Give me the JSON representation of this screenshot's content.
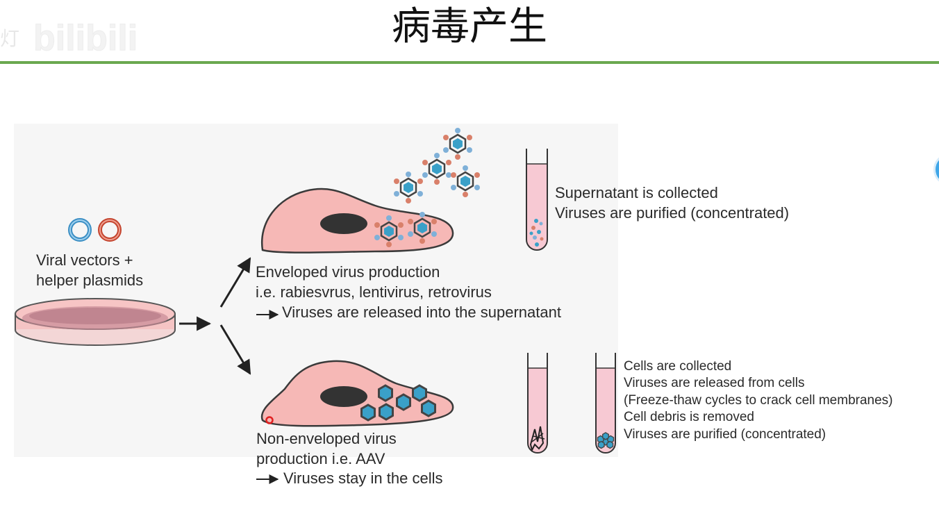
{
  "slide": {
    "title": "病毒产生",
    "accent_color": "#6aa84f"
  },
  "watermark": {
    "text": "bilibili",
    "prefix": "灯"
  },
  "diagram": {
    "left_label": [
      "Viral vectors +",
      "helper plasmids"
    ],
    "enveloped": {
      "lines": [
        "Enveloped virus production",
        "i.e. rabiesvrus, lentivirus, retrovirus"
      ],
      "result": "Viruses are released into the supernatant",
      "tube_notes": [
        "Supernatant is collected",
        "Viruses are purified (concentrated)"
      ]
    },
    "non_enveloped": {
      "lines": [
        "Non-enveloped virus",
        "production i.e. AAV"
      ],
      "result": "Viruses stay in the cells",
      "tube_notes": [
        "Cells are collected",
        "Viruses are released from cells",
        "(Freeze-thaw cycles to crack cell membranes)",
        "Cell debris is removed",
        "Viruses are purified (concentrated)"
      ]
    },
    "colors": {
      "cell_fill": "#f6b8b6",
      "cell_stroke": "#3a3a3a",
      "nucleus": "#333333",
      "virus_core": "#3aa0c8",
      "virus_spike_blue": "#7fb0d8",
      "virus_spike_red": "#d9806a",
      "tube_fill": "#f7c9d3",
      "plasmid_blue": "#3c8fc4",
      "plasmid_red": "#c4452f"
    }
  }
}
